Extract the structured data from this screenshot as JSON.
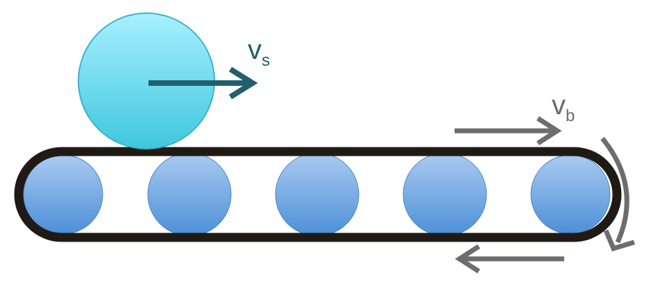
{
  "diagram": {
    "sphere_velocity": {
      "symbol": "v",
      "subscript": "s",
      "color": "#215f6e"
    },
    "belt_velocity": {
      "symbol": "v",
      "subscript": "b",
      "color": "#6d6d6d"
    },
    "colors": {
      "belt": "#1f1b14",
      "sphere_top": "#a8f0ff",
      "sphere_bottom": "#3fc7de",
      "roller_top": "#a9cbf2",
      "roller_bottom": "#4d8fd6",
      "return_arrow": "#6d6d6d"
    },
    "roller_count": 5
  }
}
